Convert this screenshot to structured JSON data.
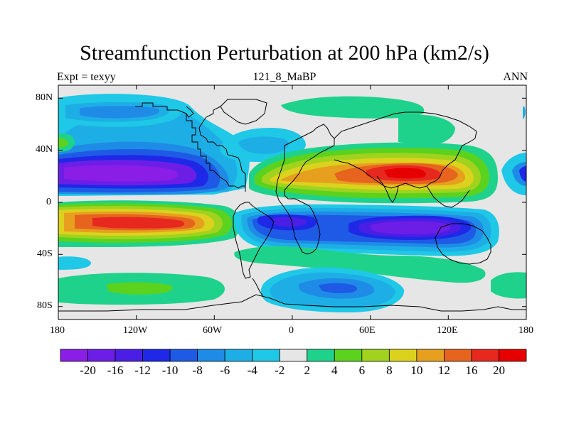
{
  "header": {
    "title": "Streamfunction Perturbation at 200 hPa (km2/s)",
    "left_label": "Expt = texyy",
    "center_label": "121_8_MaBP",
    "right_label": "ANN"
  },
  "axes": {
    "x_ticks": [
      "180",
      "120W",
      "60W",
      "0",
      "60E",
      "120E",
      "180"
    ],
    "y_ticks": [
      "80N",
      "40N",
      "0",
      "40S",
      "80S"
    ]
  },
  "colorbar": {
    "labels": [
      "-20",
      "-16",
      "-12",
      "-10",
      "-8",
      "-6",
      "-4",
      "-2",
      "2",
      "4",
      "6",
      "8",
      "10",
      "12",
      "16",
      "20"
    ],
    "colors": [
      "#8a1ee6",
      "#6c1ee6",
      "#4b1ee6",
      "#1e28e6",
      "#1e5ae6",
      "#1e8ce6",
      "#1eaee6",
      "#1ec8e6",
      "#e6e6e6",
      "#1ed28c",
      "#5ad21e",
      "#a0d21e",
      "#dcd21e",
      "#e6a01e",
      "#e6641e",
      "#e6281e",
      "#e60000"
    ]
  },
  "map": {
    "background_color": "#e6e6e6",
    "lon_range": [
      -180,
      180
    ],
    "lat_range": [
      -90,
      90
    ]
  }
}
